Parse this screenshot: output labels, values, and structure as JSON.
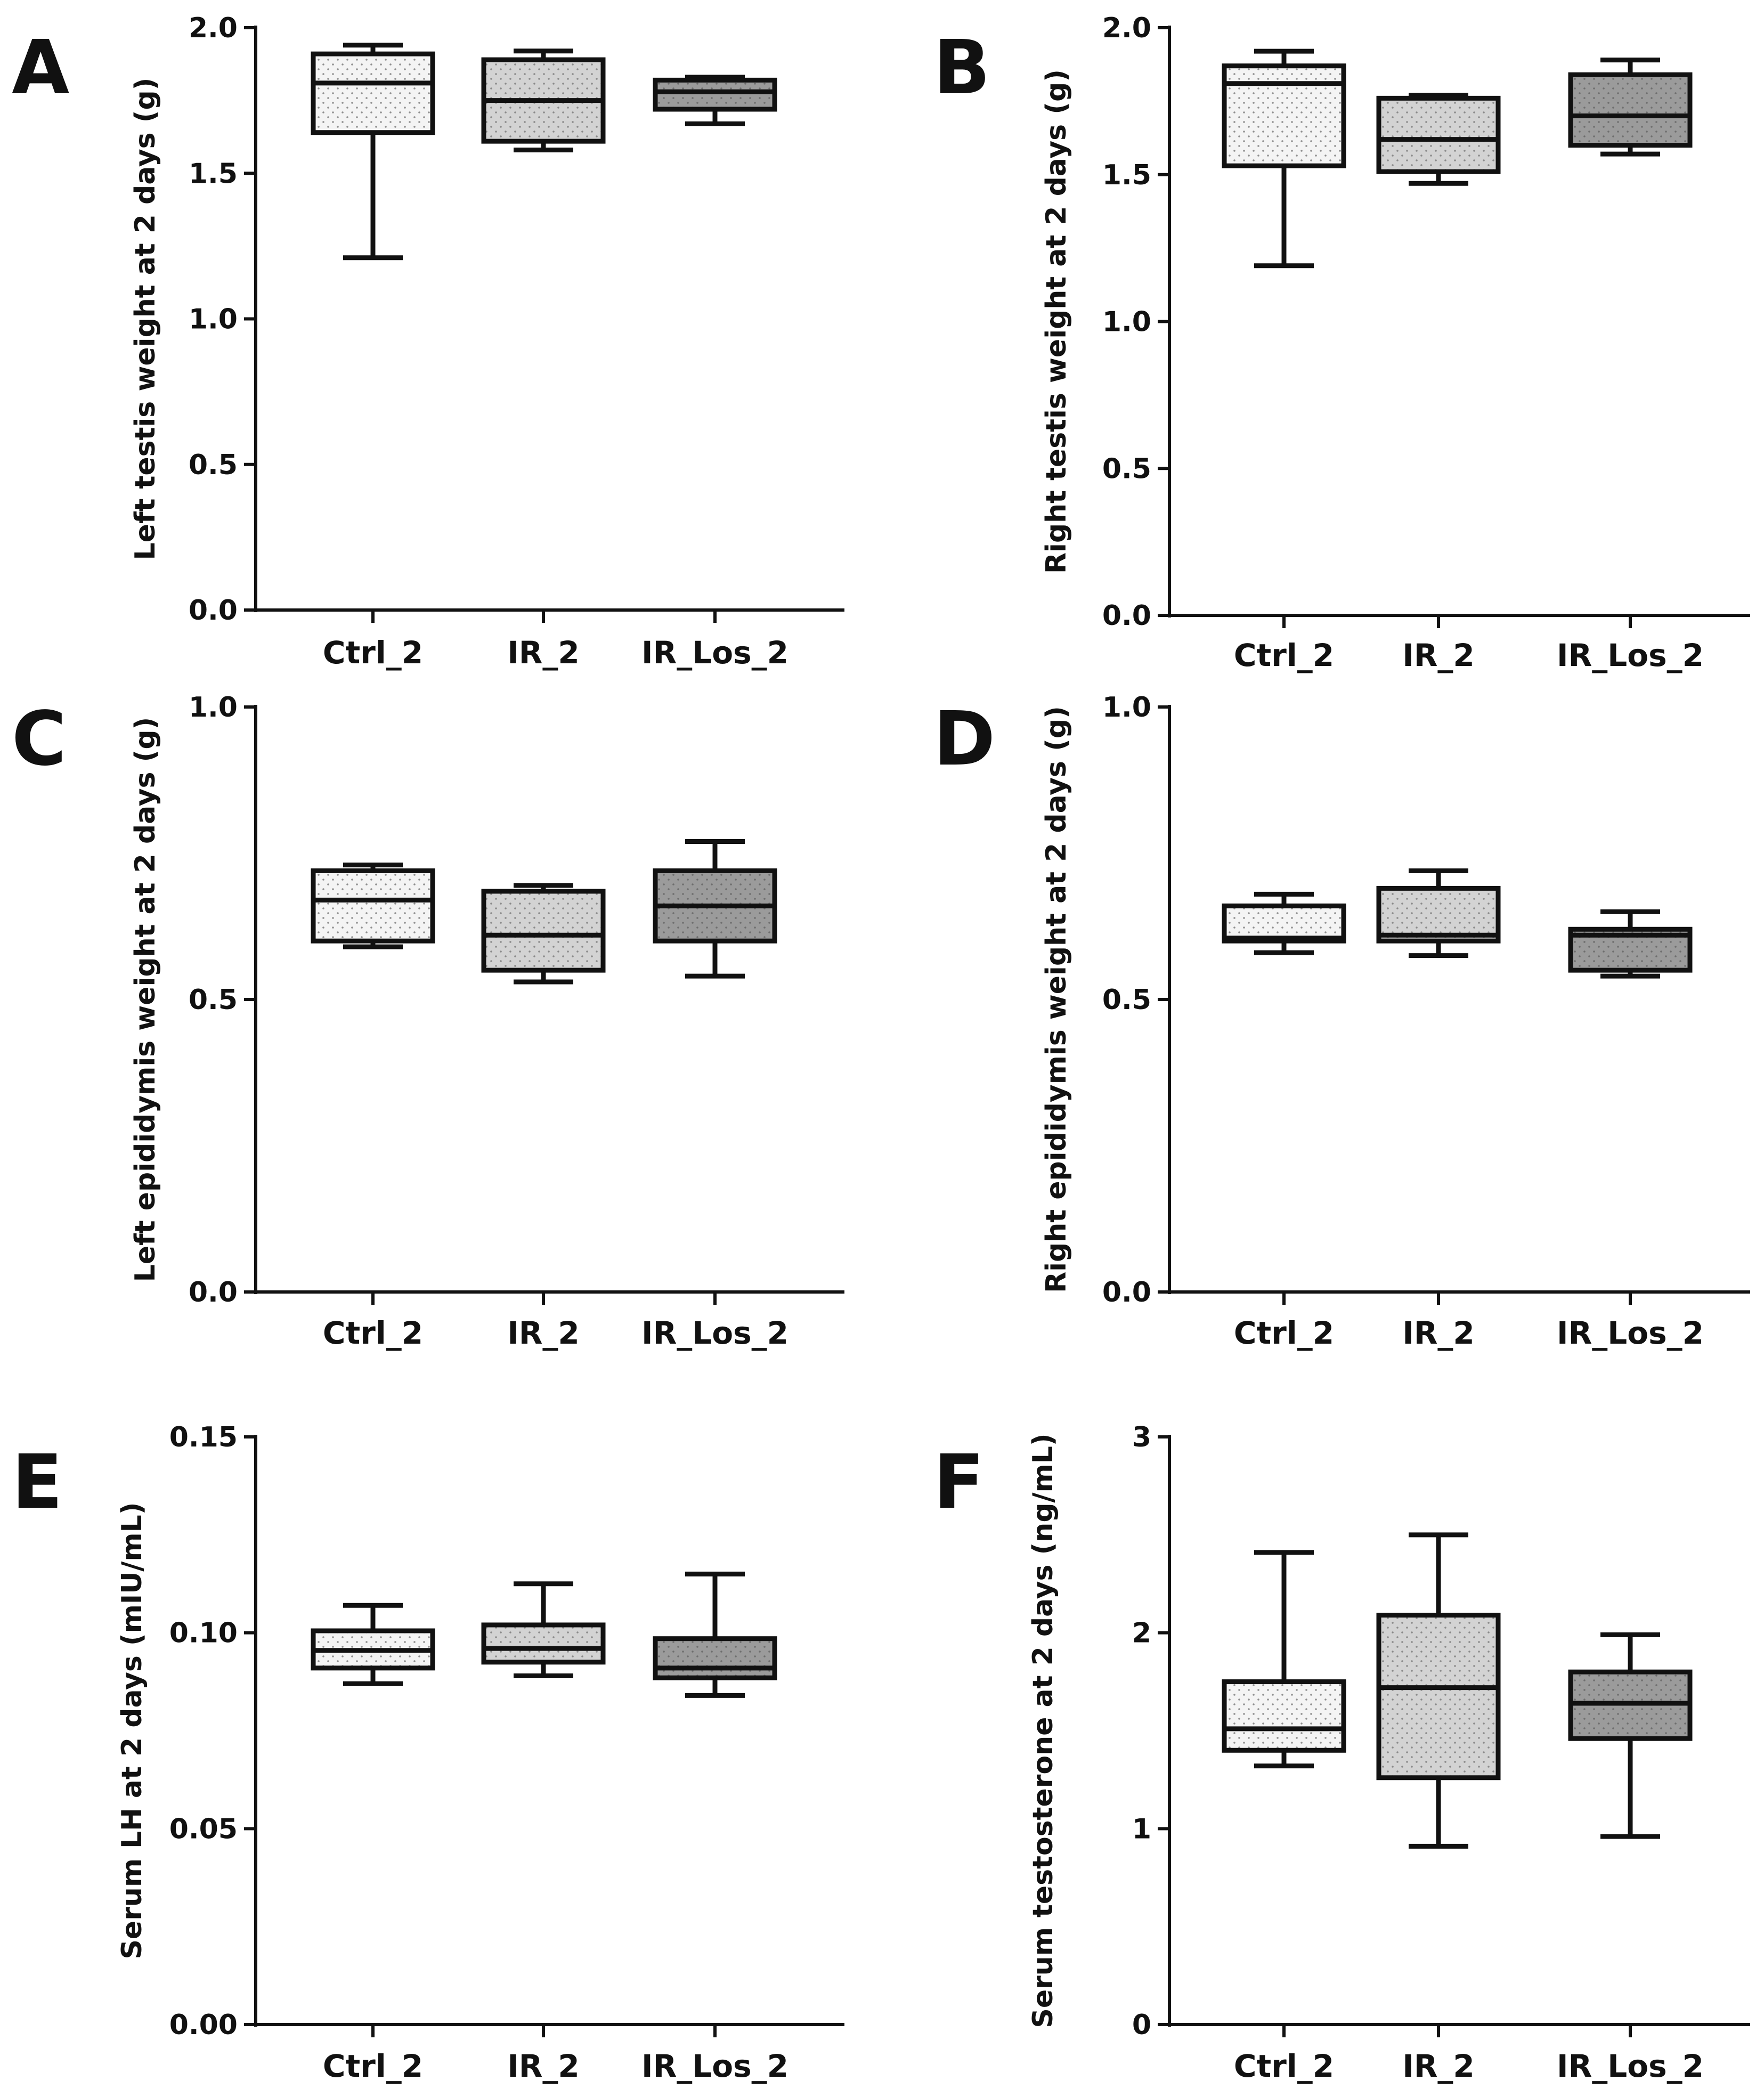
{
  "chart_data": [
    {
      "panel": "A",
      "type": "box",
      "ylabel": "Left testis weight at 2 days (g)",
      "categories": [
        "Ctrl_2",
        "IR_2",
        "IR_Los_2"
      ],
      "ylim": [
        0,
        2.0
      ],
      "yticks": [
        "0.0",
        "0.5",
        "1.0",
        "1.5",
        "2.0"
      ],
      "boxes": [
        {
          "min": 1.21,
          "q1": 1.64,
          "median": 1.81,
          "q3": 1.91,
          "max": 1.94
        },
        {
          "min": 1.58,
          "q1": 1.61,
          "median": 1.75,
          "q3": 1.89,
          "max": 1.92
        },
        {
          "min": 1.67,
          "q1": 1.72,
          "median": 1.78,
          "q3": 1.82,
          "max": 1.83
        }
      ]
    },
    {
      "panel": "B",
      "type": "box",
      "ylabel": "Right testis weight at 2 days (g)",
      "categories": [
        "Ctrl_2",
        "IR_2",
        "IR_Los_2"
      ],
      "ylim": [
        0,
        2.0
      ],
      "yticks": [
        "0.0",
        "0.5",
        "1.0",
        "1.5",
        "2.0"
      ],
      "boxes": [
        {
          "min": 1.19,
          "q1": 1.53,
          "median": 1.81,
          "q3": 1.87,
          "max": 1.92
        },
        {
          "min": 1.47,
          "q1": 1.51,
          "median": 1.62,
          "q3": 1.76,
          "max": 1.77
        },
        {
          "min": 1.57,
          "q1": 1.6,
          "median": 1.7,
          "q3": 1.84,
          "max": 1.89
        }
      ]
    },
    {
      "panel": "C",
      "type": "box",
      "ylabel": "Left epididymis weight at 2 days (g)",
      "categories": [
        "Ctrl_2",
        "IR_2",
        "IR_Los_2"
      ],
      "ylim": [
        0,
        1.0
      ],
      "yticks": [
        "0.0",
        "0.5",
        "1.0"
      ],
      "boxes": [
        {
          "min": 0.59,
          "q1": 0.6,
          "median": 0.67,
          "q3": 0.72,
          "max": 0.73
        },
        {
          "min": 0.53,
          "q1": 0.55,
          "median": 0.61,
          "q3": 0.685,
          "max": 0.695
        },
        {
          "min": 0.54,
          "q1": 0.6,
          "median": 0.66,
          "q3": 0.72,
          "max": 0.77
        }
      ]
    },
    {
      "panel": "D",
      "type": "box",
      "ylabel": "Right epididymis weight at 2 days (g)",
      "categories": [
        "Ctrl_2",
        "IR_2",
        "IR_Los_2"
      ],
      "ylim": [
        0,
        1.0
      ],
      "yticks": [
        "0.0",
        "0.5",
        "1.0"
      ],
      "boxes": [
        {
          "min": 0.58,
          "q1": 0.6,
          "median": 0.605,
          "q3": 0.66,
          "max": 0.68
        },
        {
          "min": 0.575,
          "q1": 0.6,
          "median": 0.61,
          "q3": 0.69,
          "max": 0.72
        },
        {
          "min": 0.54,
          "q1": 0.55,
          "median": 0.61,
          "q3": 0.62,
          "max": 0.65
        }
      ]
    },
    {
      "panel": "E",
      "type": "box",
      "ylabel": "Serum LH at 2 days (mIU/mL)",
      "categories": [
        "Ctrl_2",
        "IR_2",
        "IR_Los_2"
      ],
      "ylim": [
        0,
        0.15
      ],
      "yticks": [
        "0.00",
        "0.05",
        "0.10",
        "0.15"
      ],
      "boxes": [
        {
          "min": 0.087,
          "q1": 0.091,
          "median": 0.0955,
          "q3": 0.1005,
          "max": 0.107
        },
        {
          "min": 0.089,
          "q1": 0.0925,
          "median": 0.096,
          "q3": 0.102,
          "max": 0.1125
        },
        {
          "min": 0.084,
          "q1": 0.0885,
          "median": 0.091,
          "q3": 0.0985,
          "max": 0.115
        }
      ]
    },
    {
      "panel": "F",
      "type": "box",
      "ylabel": "Serum testosterone at 2 days (ng/mL)",
      "categories": [
        "Ctrl_2",
        "IR_2",
        "IR_Los_2"
      ],
      "ylim": [
        0,
        3
      ],
      "yticks": [
        "0",
        "1",
        "2",
        "3"
      ],
      "boxes": [
        {
          "min": 1.32,
          "q1": 1.4,
          "median": 1.51,
          "q3": 1.75,
          "max": 2.41
        },
        {
          "min": 0.91,
          "q1": 1.26,
          "median": 1.72,
          "q3": 2.09,
          "max": 2.5
        },
        {
          "min": 0.96,
          "q1": 1.46,
          "median": 1.64,
          "q3": 1.8,
          "max": 1.99
        }
      ]
    }
  ],
  "colors": {
    "line": "#111111",
    "box_fills": [
      "#f2f2f2",
      "#d6d6d6",
      "#9a9a9a"
    ],
    "dot": "#888888"
  }
}
